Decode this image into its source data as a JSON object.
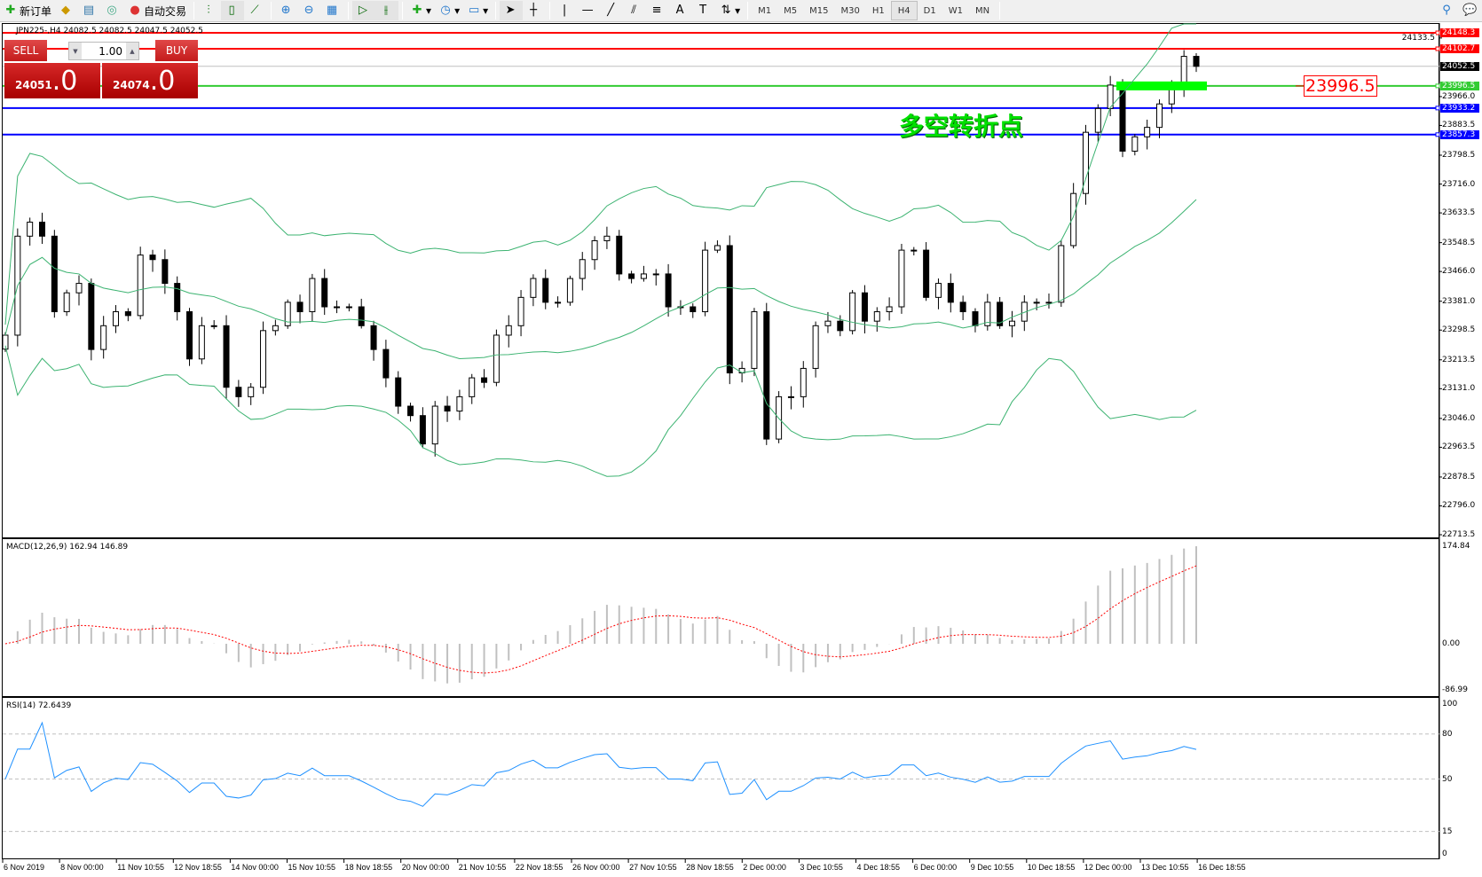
{
  "toolbar": {
    "new_order": "新订单",
    "auto_trading": "自动交易",
    "timeframes": [
      "M1",
      "M5",
      "M15",
      "M30",
      "H1",
      "H4",
      "D1",
      "W1",
      "MN"
    ],
    "active_timeframe": "H4",
    "icons": [
      "new-order-icon",
      "market-watch-icon",
      "navigator-icon",
      "signals-icon",
      "auto-trading-icon",
      "bar-chart-icon",
      "candlestick-icon",
      "line-chart-icon",
      "zoom-in-icon",
      "zoom-out-icon",
      "tile-windows-icon",
      "auto-scroll-icon",
      "chart-shift-icon",
      "indicators-icon",
      "periods-icon",
      "templates-icon",
      "cursor-icon",
      "crosshair-icon",
      "vertical-line-icon",
      "horizontal-line-icon",
      "trendline-icon",
      "equidistant-channel-icon",
      "fibonacci-icon",
      "text-icon",
      "text-label-icon",
      "arrows-icon",
      "search-icon",
      "chat-icon"
    ]
  },
  "chart": {
    "info": "JPN225-,H4  24082.5 24082.5 24047.5 24052.5",
    "trade_panel": {
      "sell": "SELL",
      "buy": "BUY",
      "lot": "1.00",
      "bid_main": "24051",
      "bid_frac": ".0",
      "ask_main": "24074",
      "ask_frac": ".0"
    },
    "annotation": "多空转折点",
    "level_label": "23996.5",
    "hlines": [
      {
        "price": 24148.3,
        "label": "24148.3",
        "color": "#ff0000"
      },
      {
        "price": 24102.7,
        "label": "24102.7",
        "color": "#ff0000"
      },
      {
        "price": 23996.5,
        "label": "23996.5",
        "color": "#33cc33"
      },
      {
        "price": 23933.2,
        "label": "23933.2",
        "color": "#0000ff"
      },
      {
        "price": 23857.3,
        "label": "23857.3",
        "color": "#0000ff"
      }
    ],
    "bid_line": {
      "price": 24052.5,
      "label": "24052.5"
    },
    "price_axis": [
      "24133.5",
      "23966.0",
      "23883.5",
      "23798.5",
      "23716.0",
      "23633.5",
      "23548.5",
      "23466.0",
      "23381.0",
      "23298.5",
      "23213.5",
      "23131.0",
      "23046.0",
      "22963.5",
      "22878.5",
      "22796.0",
      "22713.5"
    ],
    "time_axis": [
      "6 Nov 2019",
      "8 Nov 00:00",
      "11 Nov 10:55",
      "12 Nov 18:55",
      "14 Nov 00:00",
      "15 Nov 10:55",
      "18 Nov 18:55",
      "20 Nov 00:00",
      "21 Nov 10:55",
      "22 Nov 18:55",
      "26 Nov 00:00",
      "27 Nov 10:55",
      "28 Nov 18:55",
      "2 Dec 00:00",
      "3 Dec 10:55",
      "4 Dec 18:55",
      "6 Dec 00:00",
      "9 Dec 10:55",
      "10 Dec 18:55",
      "12 Dec 00:00",
      "13 Dec 10:55",
      "16 Dec 18:55"
    ]
  },
  "chart_data": {
    "type": "candlestick",
    "symbol": "JPN225-",
    "timeframe": "H4",
    "ylim": [
      22713.5,
      24160
    ],
    "closes": [
      23284,
      23567,
      23607,
      23567,
      23351,
      23405,
      23432,
      23243,
      23311,
      23351,
      23340,
      23513,
      23500,
      23432,
      23351,
      23216,
      23311,
      23311,
      23135,
      23108,
      23135,
      23297,
      23311,
      23378,
      23351,
      23446,
      23365,
      23365,
      23365,
      23311,
      23243,
      23162,
      23081,
      23054,
      22973,
      23081,
      23067,
      23108,
      23162,
      23149,
      23284,
      23311,
      23392,
      23446,
      23378,
      23378,
      23446,
      23500,
      23554,
      23567,
      23459,
      23446,
      23459,
      23459,
      23365,
      23365,
      23351,
      23527,
      23540,
      23176,
      23189,
      23351,
      22987,
      23108,
      23108,
      23189,
      23311,
      23324,
      23297,
      23405,
      23324,
      23351,
      23365,
      23527,
      23527,
      23392,
      23432,
      23378,
      23351,
      23311,
      23378,
      23311,
      23324,
      23378,
      23378,
      23378,
      23540,
      23689,
      23864,
      23932,
      23999,
      23810,
      23851,
      23878,
      23945,
      23986,
      24081,
      24052.5
    ],
    "macd": {
      "label": "MACD(12,26,9) 162.94 146.89",
      "ylim": [
        -86.99,
        174.84
      ],
      "ticks": [
        "174.84",
        "0.00",
        "-86.99"
      ]
    },
    "rsi": {
      "label": "RSI(14) 72.6439",
      "ylim": [
        0,
        100
      ],
      "ticks": [
        "100",
        "80",
        "50",
        "15",
        "0"
      ],
      "levels": [
        80,
        50,
        15
      ]
    },
    "bollinger_color": "#3cb371",
    "macd_signal_color": "#ff0000",
    "rsi_color": "#1e90ff"
  }
}
